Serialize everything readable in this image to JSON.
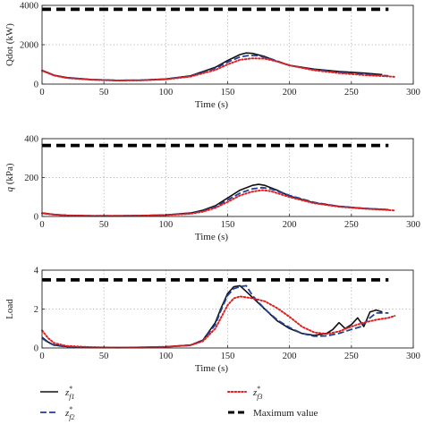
{
  "chart_data": [
    {
      "type": "line",
      "xlabel": "Time (s)",
      "ylabel": "Qdot (kW)",
      "xlim": [
        0,
        300
      ],
      "ylim": [
        0,
        4000
      ],
      "xticks": [
        "0",
        "50",
        "100",
        "150",
        "200",
        "250",
        "300"
      ],
      "yticks": [
        "0",
        "2000",
        "4000"
      ],
      "grid": true,
      "series": [
        {
          "name": "z*f1",
          "color": "#111111",
          "style": "solid",
          "x": [
            0,
            10,
            20,
            40,
            60,
            80,
            100,
            120,
            140,
            150,
            160,
            165,
            170,
            180,
            190,
            200,
            220,
            240,
            260,
            275
          ],
          "y": [
            700,
            450,
            330,
            230,
            190,
            200,
            260,
            420,
            850,
            1200,
            1500,
            1580,
            1560,
            1400,
            1150,
            950,
            760,
            640,
            560,
            480
          ]
        },
        {
          "name": "z*f2",
          "color": "#1f3f9a",
          "style": "dashed",
          "x": [
            0,
            10,
            20,
            40,
            60,
            80,
            100,
            120,
            140,
            150,
            160,
            168,
            175,
            185,
            200,
            220,
            240,
            260,
            280
          ],
          "y": [
            690,
            440,
            320,
            225,
            185,
            195,
            250,
            400,
            800,
            1120,
            1380,
            1460,
            1440,
            1280,
            950,
            730,
            600,
            500,
            420
          ]
        },
        {
          "name": "z*f3",
          "color": "#e02020",
          "style": "dotted",
          "x": [
            0,
            10,
            20,
            40,
            60,
            80,
            100,
            120,
            140,
            150,
            160,
            170,
            180,
            190,
            200,
            220,
            240,
            260,
            280,
            285
          ],
          "y": [
            680,
            430,
            310,
            220,
            180,
            190,
            240,
            380,
            720,
            1000,
            1230,
            1310,
            1290,
            1150,
            950,
            700,
            560,
            460,
            390,
            370
          ]
        },
        {
          "name": "Maximum value",
          "color": "#000000",
          "style": "dash-thick",
          "x": [
            0,
            280
          ],
          "y": [
            3800,
            3800
          ]
        }
      ]
    },
    {
      "type": "line",
      "xlabel": "Time (s)",
      "ylabel": "q (kPa)",
      "xlim": [
        0,
        300
      ],
      "ylim": [
        0,
        400
      ],
      "xticks": [
        "0",
        "50",
        "100",
        "150",
        "200",
        "250",
        "300"
      ],
      "yticks": [
        "0",
        "200",
        "400"
      ],
      "grid": true,
      "series": [
        {
          "name": "z*f1",
          "color": "#111111",
          "style": "solid",
          "x": [
            0,
            10,
            20,
            40,
            60,
            80,
            100,
            120,
            130,
            140,
            150,
            160,
            170,
            175,
            180,
            190,
            200,
            220,
            240,
            260,
            280
          ],
          "y": [
            18,
            10,
            6,
            3,
            3,
            4,
            8,
            18,
            32,
            55,
            95,
            135,
            160,
            165,
            160,
            135,
            105,
            70,
            52,
            42,
            35
          ]
        },
        {
          "name": "z*f2",
          "color": "#1f3f9a",
          "style": "dashed",
          "x": [
            0,
            10,
            20,
            40,
            60,
            80,
            100,
            120,
            130,
            140,
            150,
            160,
            170,
            178,
            185,
            200,
            220,
            240,
            260,
            280
          ],
          "y": [
            17,
            9,
            6,
            3,
            3,
            4,
            8,
            16,
            28,
            50,
            85,
            120,
            142,
            148,
            142,
            108,
            72,
            52,
            42,
            35
          ]
        },
        {
          "name": "z*f3",
          "color": "#e02020",
          "style": "dotted",
          "x": [
            0,
            10,
            20,
            40,
            60,
            80,
            100,
            120,
            130,
            140,
            150,
            160,
            170,
            178,
            185,
            200,
            220,
            240,
            260,
            280,
            285
          ],
          "y": [
            16,
            9,
            5,
            3,
            3,
            4,
            7,
            14,
            25,
            44,
            75,
            108,
            128,
            135,
            130,
            100,
            68,
            50,
            40,
            33,
            31
          ]
        },
        {
          "name": "Maximum value",
          "color": "#000000",
          "style": "dash-thick",
          "x": [
            0,
            280
          ],
          "y": [
            365,
            365
          ]
        }
      ]
    },
    {
      "type": "line",
      "xlabel": "Time (s)",
      "ylabel": "Load",
      "xlim": [
        0,
        300
      ],
      "ylim": [
        0,
        4
      ],
      "xticks": [
        "0",
        "50",
        "100",
        "150",
        "200",
        "250",
        "300"
      ],
      "yticks": [
        "0",
        "2",
        "4"
      ],
      "grid": true,
      "series": [
        {
          "name": "z*f1",
          "color": "#111111",
          "style": "solid",
          "x": [
            0,
            5,
            10,
            20,
            40,
            60,
            80,
            100,
            120,
            130,
            140,
            145,
            150,
            155,
            160,
            165,
            170,
            180,
            190,
            200,
            210,
            220,
            230,
            235,
            240,
            245,
            250,
            255,
            260,
            265,
            270,
            275
          ],
          "y": [
            0.55,
            0.3,
            0.15,
            0.07,
            0.03,
            0.02,
            0.03,
            0.06,
            0.15,
            0.4,
            1.3,
            2.1,
            2.8,
            3.15,
            3.2,
            2.9,
            2.6,
            2.0,
            1.4,
            1.0,
            0.75,
            0.65,
            0.75,
            0.95,
            1.3,
            1.0,
            1.2,
            1.55,
            1.1,
            1.85,
            1.95,
            1.85
          ]
        },
        {
          "name": "z*f2",
          "color": "#1f3f9a",
          "style": "dashed",
          "x": [
            0,
            5,
            10,
            20,
            40,
            60,
            80,
            100,
            120,
            130,
            140,
            145,
            150,
            155,
            160,
            165,
            170,
            180,
            190,
            200,
            210,
            220,
            230,
            240,
            250,
            258,
            265,
            270,
            280
          ],
          "y": [
            0.5,
            0.28,
            0.14,
            0.06,
            0.03,
            0.02,
            0.03,
            0.06,
            0.14,
            0.38,
            1.2,
            2.0,
            2.7,
            3.05,
            3.15,
            3.2,
            2.7,
            2.0,
            1.45,
            1.05,
            0.75,
            0.6,
            0.62,
            0.75,
            0.95,
            1.1,
            1.55,
            1.8,
            1.8
          ]
        },
        {
          "name": "z*f3",
          "color": "#e02020",
          "style": "dotted",
          "x": [
            0,
            5,
            10,
            20,
            40,
            60,
            80,
            100,
            120,
            130,
            140,
            145,
            150,
            155,
            160,
            165,
            170,
            180,
            190,
            200,
            210,
            220,
            230,
            240,
            250,
            260,
            270,
            280,
            285
          ],
          "y": [
            0.9,
            0.5,
            0.25,
            0.1,
            0.04,
            0.02,
            0.03,
            0.06,
            0.14,
            0.35,
            1.0,
            1.6,
            2.2,
            2.55,
            2.65,
            2.6,
            2.55,
            2.4,
            2.05,
            1.6,
            1.1,
            0.8,
            0.72,
            0.85,
            1.1,
            1.3,
            1.45,
            1.55,
            1.65
          ]
        },
        {
          "name": "Maximum value",
          "color": "#000000",
          "style": "dash-thick",
          "x": [
            0,
            280
          ],
          "y": [
            3.5,
            3.5
          ]
        }
      ]
    }
  ],
  "legend": {
    "placement": "bottom",
    "entries": [
      {
        "series": "z*f1",
        "label": "z",
        "sup": "*",
        "sub": "f1"
      },
      {
        "series": "z*f3",
        "label": "z",
        "sup": "*",
        "sub": "f3"
      },
      {
        "series": "z*f2",
        "label": "z",
        "sup": "*",
        "sub": "f2"
      },
      {
        "series": "Maximum value",
        "label": "Maximum value",
        "sup": "",
        "sub": ""
      }
    ]
  }
}
